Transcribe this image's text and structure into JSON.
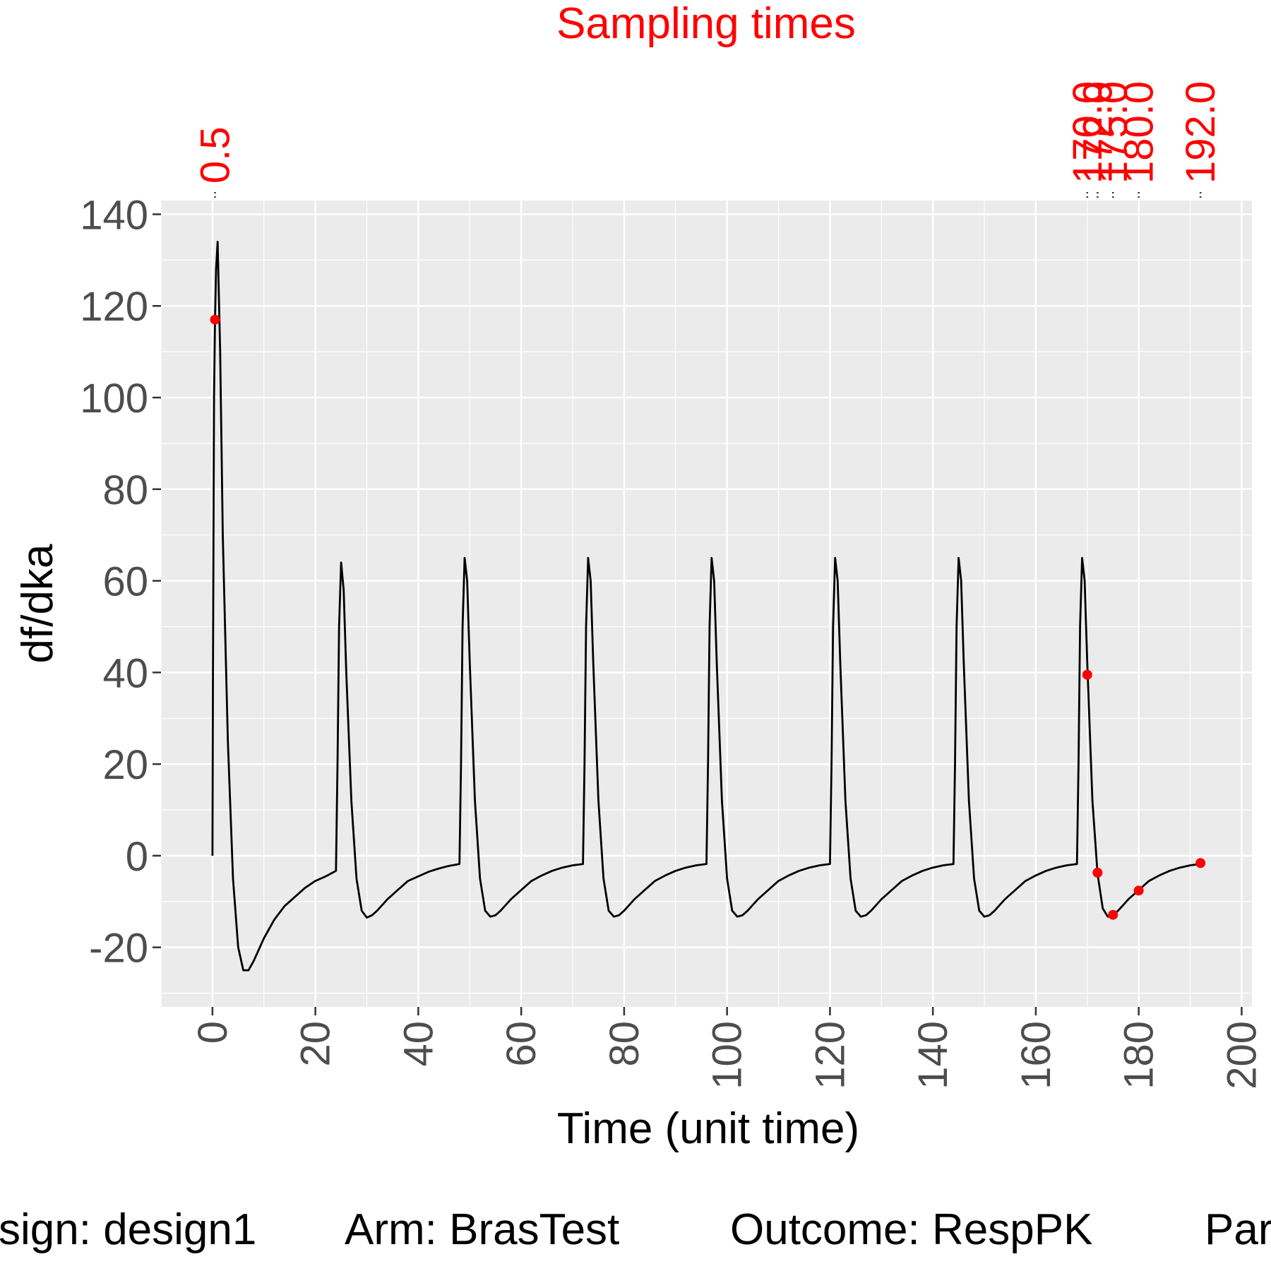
{
  "chart_data": {
    "type": "line",
    "title": "Sampling times",
    "xlabel": "Time (unit time)",
    "ylabel": "df/dka",
    "xlim": [
      -10,
      202
    ],
    "ylim": [
      -33,
      143
    ],
    "x_ticks": [
      0,
      20,
      40,
      60,
      80,
      100,
      120,
      140,
      160,
      180,
      200
    ],
    "x_tick_labels": [
      "0",
      "20",
      "40",
      "60",
      "80",
      "100",
      "120",
      "140",
      "160",
      "180",
      "200"
    ],
    "y_ticks": [
      -20,
      0,
      20,
      40,
      60,
      80,
      100,
      120,
      140
    ],
    "y_tick_labels": [
      "-20",
      "0",
      "20",
      "40",
      "60",
      "80",
      "100",
      "120",
      "140"
    ],
    "grid": true,
    "sampling_times": [
      0.5,
      170.0,
      172.0,
      175.0,
      180.0,
      192.0
    ],
    "sampling_time_labels": [
      "0.5",
      "170.0",
      "172.0",
      "175.0",
      "180.0",
      "192.0"
    ],
    "series": [
      {
        "color": "#000000",
        "x": [
          0,
          0.1,
          0.3,
          0.5,
          0.7,
          1,
          1.5,
          2,
          3,
          4,
          5,
          6,
          7,
          8,
          10,
          12,
          14,
          16,
          18,
          20,
          22,
          24,
          24.3,
          24.6,
          25,
          25.5,
          26,
          27,
          28,
          29,
          30,
          31,
          32,
          34,
          36,
          38,
          40,
          42,
          44,
          46,
          48,
          48.3,
          48.6,
          49,
          49.5,
          50,
          51,
          52,
          53,
          54,
          55,
          56,
          58,
          60,
          62,
          64,
          66,
          68,
          70,
          72,
          72.3,
          72.6,
          73,
          73.5,
          74,
          75,
          76,
          77,
          78,
          79,
          80,
          82,
          84,
          86,
          88,
          90,
          92,
          94,
          96,
          96.3,
          96.6,
          97,
          97.5,
          98,
          99,
          100,
          101,
          102,
          103,
          104,
          106,
          108,
          110,
          112,
          114,
          116,
          118,
          120,
          120.3,
          120.6,
          121,
          121.5,
          122,
          123,
          124,
          125,
          126,
          127,
          128,
          130,
          132,
          134,
          136,
          138,
          140,
          142,
          144,
          144.3,
          144.6,
          145,
          145.5,
          146,
          147,
          148,
          149,
          150,
          151,
          152,
          154,
          156,
          158,
          160,
          162,
          164,
          166,
          168,
          168.3,
          168.6,
          169,
          169.5,
          170,
          171,
          172,
          173,
          174,
          175,
          176,
          178,
          180,
          182,
          184,
          186,
          188,
          190,
          192
        ],
        "y": [
          0,
          40,
          100,
          117,
          128,
          134,
          110,
          70,
          25,
          -5,
          -20,
          -25,
          -25,
          -23,
          -18,
          -14,
          -11,
          -9,
          -7,
          -5.5,
          -4.5,
          -3.3,
          20,
          50,
          64,
          58,
          40,
          12,
          -5,
          -12,
          -13.5,
          -13,
          -12,
          -9.5,
          -7.5,
          -5.5,
          -4.5,
          -3.5,
          -2.8,
          -2.2,
          -1.8,
          20,
          50,
          65,
          60,
          42,
          12,
          -5,
          -12,
          -13.3,
          -13,
          -12,
          -9.5,
          -7.5,
          -5.5,
          -4.3,
          -3.3,
          -2.6,
          -2.1,
          -1.8,
          20,
          50,
          65,
          60,
          42,
          12,
          -5,
          -12,
          -13.3,
          -13,
          -12,
          -9.5,
          -7.5,
          -5.5,
          -4.3,
          -3.3,
          -2.6,
          -2.1,
          -1.8,
          20,
          50,
          65,
          60,
          42,
          12,
          -5,
          -12,
          -13.3,
          -13,
          -12,
          -9.5,
          -7.5,
          -5.5,
          -4.3,
          -3.3,
          -2.6,
          -2.1,
          -1.8,
          20,
          50,
          65,
          60,
          42,
          12,
          -5,
          -12,
          -13.3,
          -13,
          -12,
          -9.5,
          -7.5,
          -5.5,
          -4.3,
          -3.3,
          -2.6,
          -2.1,
          -1.8,
          20,
          50,
          65,
          60,
          42,
          12,
          -5,
          -12,
          -13.3,
          -13,
          -12,
          -9.5,
          -7.5,
          -5.5,
          -4.3,
          -3.3,
          -2.6,
          -2.1,
          -1.8,
          20,
          50,
          65,
          60,
          42,
          12,
          -4,
          -11.5,
          -13.3,
          -13,
          -12,
          -9.5,
          -7.5,
          -5.5,
          -4.3,
          -3.3,
          -2.6,
          -2.1,
          -1.8
        ]
      }
    ],
    "points": {
      "color": "#ff0000",
      "x": [
        0.5,
        170.0,
        172.0,
        175.0,
        180.0,
        192.0
      ],
      "y": [
        117,
        39.5,
        -3.7,
        -12.9,
        -7.6,
        -1.6
      ]
    },
    "footer": [
      "sign: design1",
      "Arm: BrasTest",
      "Outcome: RespPK",
      "Par"
    ]
  }
}
